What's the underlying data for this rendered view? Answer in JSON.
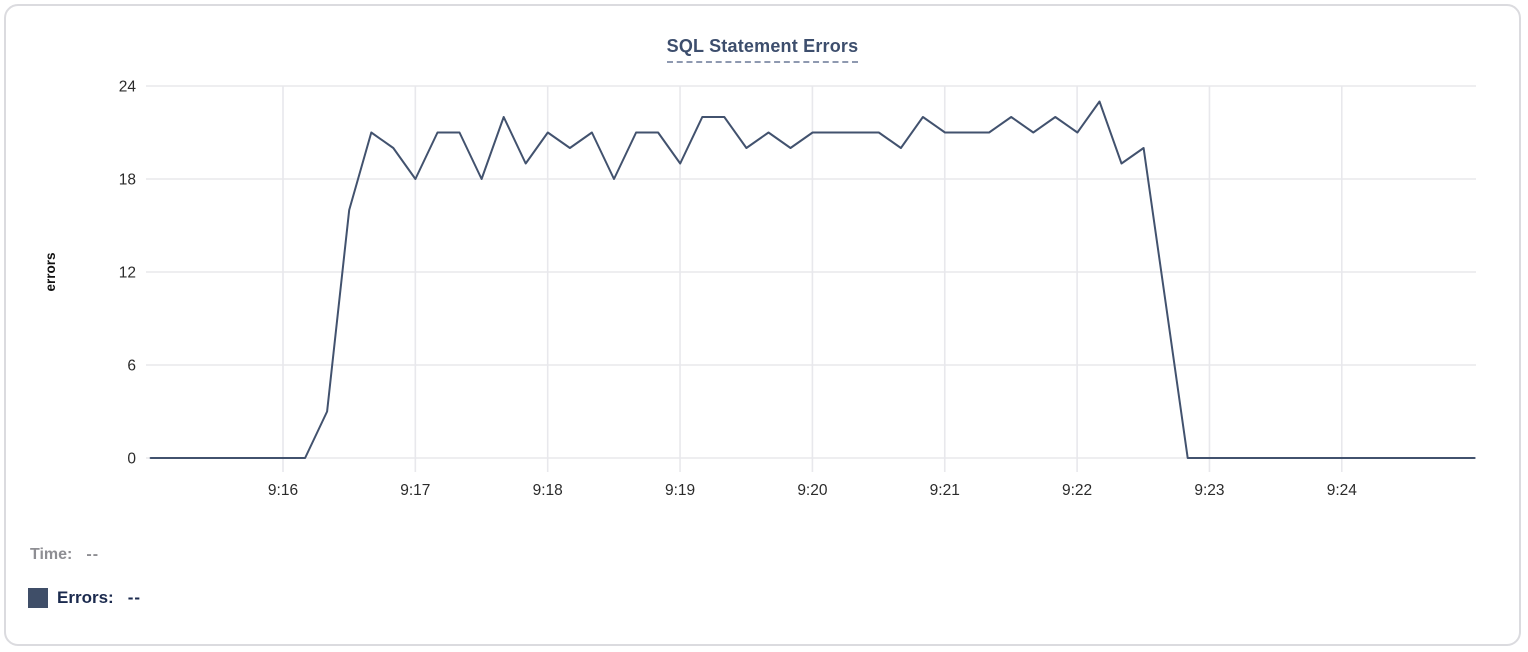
{
  "readout": {
    "time_label": "Time:",
    "time_value": "--",
    "errors_label": "Errors:",
    "errors_value": "--"
  },
  "colors": {
    "series_line": "#42526e",
    "title_text": "#3d4e6d",
    "title_underline": "#8e99b0",
    "grid": "#e8e8ec",
    "tick_text": "#2b2b2b",
    "axis_title_text": "#111111",
    "time_label_text": "#8e8e93",
    "errors_label_text": "#1b2a4e",
    "legend_swatch": "#3f4e68",
    "card_border": "#dbdbdf"
  },
  "chart_data": {
    "type": "line",
    "title": "SQL Statement Errors",
    "xlabel": "",
    "ylabel": "errors",
    "ylim": [
      0,
      24
    ],
    "y_ticks": [
      0,
      6,
      12,
      18,
      24
    ],
    "x_tick_labels": [
      "9:16",
      "9:17",
      "9:18",
      "9:19",
      "9:20",
      "9:21",
      "9:22",
      "9:23",
      "9:24"
    ],
    "x_domain": [
      "9:15:00",
      "9:25:00"
    ],
    "grid": true,
    "legend_position": "none",
    "series": [
      {
        "name": "Errors",
        "times": [
          "9:15:00",
          "9:15:10",
          "9:15:20",
          "9:15:30",
          "9:15:40",
          "9:15:50",
          "9:16:00",
          "9:16:10",
          "9:16:20",
          "9:16:30",
          "9:16:40",
          "9:16:50",
          "9:17:00",
          "9:17:10",
          "9:17:20",
          "9:17:30",
          "9:17:40",
          "9:17:50",
          "9:18:00",
          "9:18:10",
          "9:18:20",
          "9:18:30",
          "9:18:40",
          "9:18:50",
          "9:19:00",
          "9:19:10",
          "9:19:20",
          "9:19:30",
          "9:19:40",
          "9:19:50",
          "9:20:00",
          "9:20:10",
          "9:20:20",
          "9:20:30",
          "9:20:40",
          "9:20:50",
          "9:21:00",
          "9:21:10",
          "9:21:20",
          "9:21:30",
          "9:21:40",
          "9:21:50",
          "9:22:00",
          "9:22:10",
          "9:22:20",
          "9:22:30",
          "9:22:40",
          "9:22:50",
          "9:23:00",
          "9:23:10",
          "9:23:20",
          "9:23:30",
          "9:23:40",
          "9:23:50",
          "9:24:00",
          "9:24:10",
          "9:24:20",
          "9:24:30",
          "9:24:40",
          "9:24:50",
          "9:25:00"
        ],
        "values": [
          0,
          0,
          0,
          0,
          0,
          0,
          0,
          0,
          3,
          16,
          21,
          20,
          18,
          21,
          21,
          18,
          22,
          19,
          21,
          20,
          21,
          18,
          21,
          21,
          19,
          22,
          22,
          20,
          21,
          20,
          21,
          21,
          21,
          21,
          20,
          22,
          21,
          21,
          21,
          22,
          21,
          22,
          21,
          23,
          19,
          20,
          10,
          0,
          0,
          0,
          0,
          0,
          0,
          0,
          0,
          0,
          0,
          0,
          0,
          0,
          0
        ]
      }
    ]
  }
}
